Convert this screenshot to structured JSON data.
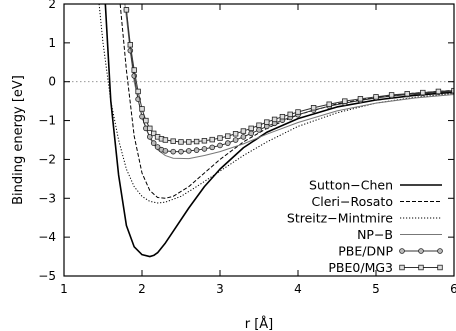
{
  "chart_data": {
    "type": "line",
    "xlabel": "r [Å]",
    "ylabel": "Binding energy [eV]",
    "xlim": [
      1,
      6
    ],
    "ylim": [
      -5,
      2
    ],
    "x_ticks": [
      "1",
      "2",
      "3",
      "4",
      "5",
      "6"
    ],
    "y_ticks": [
      "2",
      "1",
      "0",
      "−1",
      "−2",
      "−3",
      "−4",
      "−5"
    ],
    "zero_line": true,
    "grid": false,
    "legend_position": "bottom-right",
    "series": [
      {
        "name": "Sutton−Chen",
        "style": "solid-thick",
        "x": [
          1.53,
          1.6,
          1.7,
          1.8,
          1.9,
          2.0,
          2.1,
          2.15,
          2.2,
          2.3,
          2.4,
          2.6,
          2.8,
          3.0,
          3.3,
          3.6,
          4.0,
          4.5,
          5.0,
          5.5,
          6.0
        ],
        "y": [
          2.0,
          -0.5,
          -2.4,
          -3.7,
          -4.25,
          -4.45,
          -4.5,
          -4.47,
          -4.4,
          -4.15,
          -3.85,
          -3.25,
          -2.7,
          -2.25,
          -1.7,
          -1.3,
          -0.95,
          -0.65,
          -0.47,
          -0.35,
          -0.27
        ]
      },
      {
        "name": "Cleri−Rosato",
        "style": "dashed",
        "x": [
          1.72,
          1.8,
          1.9,
          2.0,
          2.1,
          2.2,
          2.3,
          2.4,
          2.6,
          2.8,
          3.0,
          3.3,
          3.6,
          4.0,
          4.5,
          5.0,
          5.5,
          6.0
        ],
        "y": [
          2.0,
          0.3,
          -1.4,
          -2.35,
          -2.8,
          -2.98,
          -3.0,
          -2.95,
          -2.7,
          -2.35,
          -2.0,
          -1.55,
          -1.2,
          -0.85,
          -0.57,
          -0.4,
          -0.29,
          -0.22
        ]
      },
      {
        "name": "Streitz−Mintmire",
        "style": "dotted",
        "x": [
          1.45,
          1.5,
          1.6,
          1.7,
          1.8,
          1.9,
          2.0,
          2.1,
          2.2,
          2.3,
          2.5,
          2.7,
          3.0,
          3.3,
          3.6,
          4.0,
          4.5,
          5.0,
          5.5,
          6.0
        ],
        "y": [
          2.0,
          1.0,
          -0.5,
          -1.5,
          -2.25,
          -2.7,
          -2.95,
          -3.08,
          -3.12,
          -3.1,
          -2.95,
          -2.7,
          -2.3,
          -1.9,
          -1.55,
          -1.15,
          -0.8,
          -0.55,
          -0.4,
          -0.3
        ]
      },
      {
        "name": "NP−B",
        "style": "solid-thin-gray",
        "x": [
          1.78,
          1.85,
          1.9,
          2.0,
          2.1,
          2.2,
          2.3,
          2.4,
          2.6,
          2.8,
          3.0,
          3.3,
          3.6,
          4.0,
          4.5,
          5.0,
          5.5,
          6.0
        ],
        "y": [
          2.0,
          0.8,
          0.0,
          -0.9,
          -1.45,
          -1.75,
          -1.9,
          -1.97,
          -1.98,
          -1.9,
          -1.8,
          -1.6,
          -1.35,
          -1.05,
          -0.75,
          -0.55,
          -0.42,
          -0.33
        ]
      },
      {
        "name": "PBE/DNP",
        "style": "solid-circle",
        "x": [
          1.8,
          1.85,
          1.9,
          1.95,
          2.0,
          2.05,
          2.1,
          2.15,
          2.2,
          2.25,
          2.3,
          2.4,
          2.5,
          2.6,
          2.7,
          2.8,
          2.9,
          3.0,
          3.1,
          3.2,
          3.3,
          3.4,
          3.5,
          3.6,
          3.7,
          3.8,
          3.9,
          4.0,
          4.2,
          4.4,
          4.6,
          4.8,
          5.0,
          5.2,
          5.4,
          5.6,
          5.8,
          6.0
        ],
        "y": [
          1.85,
          0.8,
          0.15,
          -0.45,
          -0.9,
          -1.2,
          -1.42,
          -1.58,
          -1.68,
          -1.75,
          -1.78,
          -1.8,
          -1.8,
          -1.78,
          -1.76,
          -1.73,
          -1.69,
          -1.64,
          -1.58,
          -1.5,
          -1.42,
          -1.33,
          -1.24,
          -1.15,
          -1.07,
          -0.99,
          -0.92,
          -0.85,
          -0.73,
          -0.63,
          -0.55,
          -0.48,
          -0.42,
          -0.37,
          -0.33,
          -0.3,
          -0.27,
          -0.25
        ]
      },
      {
        "name": "PBE0/MG3",
        "style": "solid-square",
        "x": [
          1.8,
          1.85,
          1.9,
          1.95,
          2.0,
          2.05,
          2.1,
          2.15,
          2.2,
          2.25,
          2.3,
          2.4,
          2.5,
          2.6,
          2.7,
          2.8,
          2.9,
          3.0,
          3.1,
          3.2,
          3.3,
          3.4,
          3.5,
          3.6,
          3.7,
          3.8,
          3.9,
          4.0,
          4.2,
          4.4,
          4.6,
          4.8,
          5.0,
          5.2,
          5.4,
          5.6,
          5.8,
          6.0
        ],
        "y": [
          1.85,
          0.95,
          0.3,
          -0.25,
          -0.7,
          -1.0,
          -1.2,
          -1.33,
          -1.42,
          -1.47,
          -1.5,
          -1.53,
          -1.55,
          -1.55,
          -1.54,
          -1.52,
          -1.49,
          -1.45,
          -1.4,
          -1.34,
          -1.27,
          -1.2,
          -1.12,
          -1.04,
          -0.97,
          -0.9,
          -0.84,
          -0.78,
          -0.67,
          -0.58,
          -0.5,
          -0.44,
          -0.39,
          -0.34,
          -0.31,
          -0.28,
          -0.25,
          -0.23
        ]
      }
    ]
  }
}
